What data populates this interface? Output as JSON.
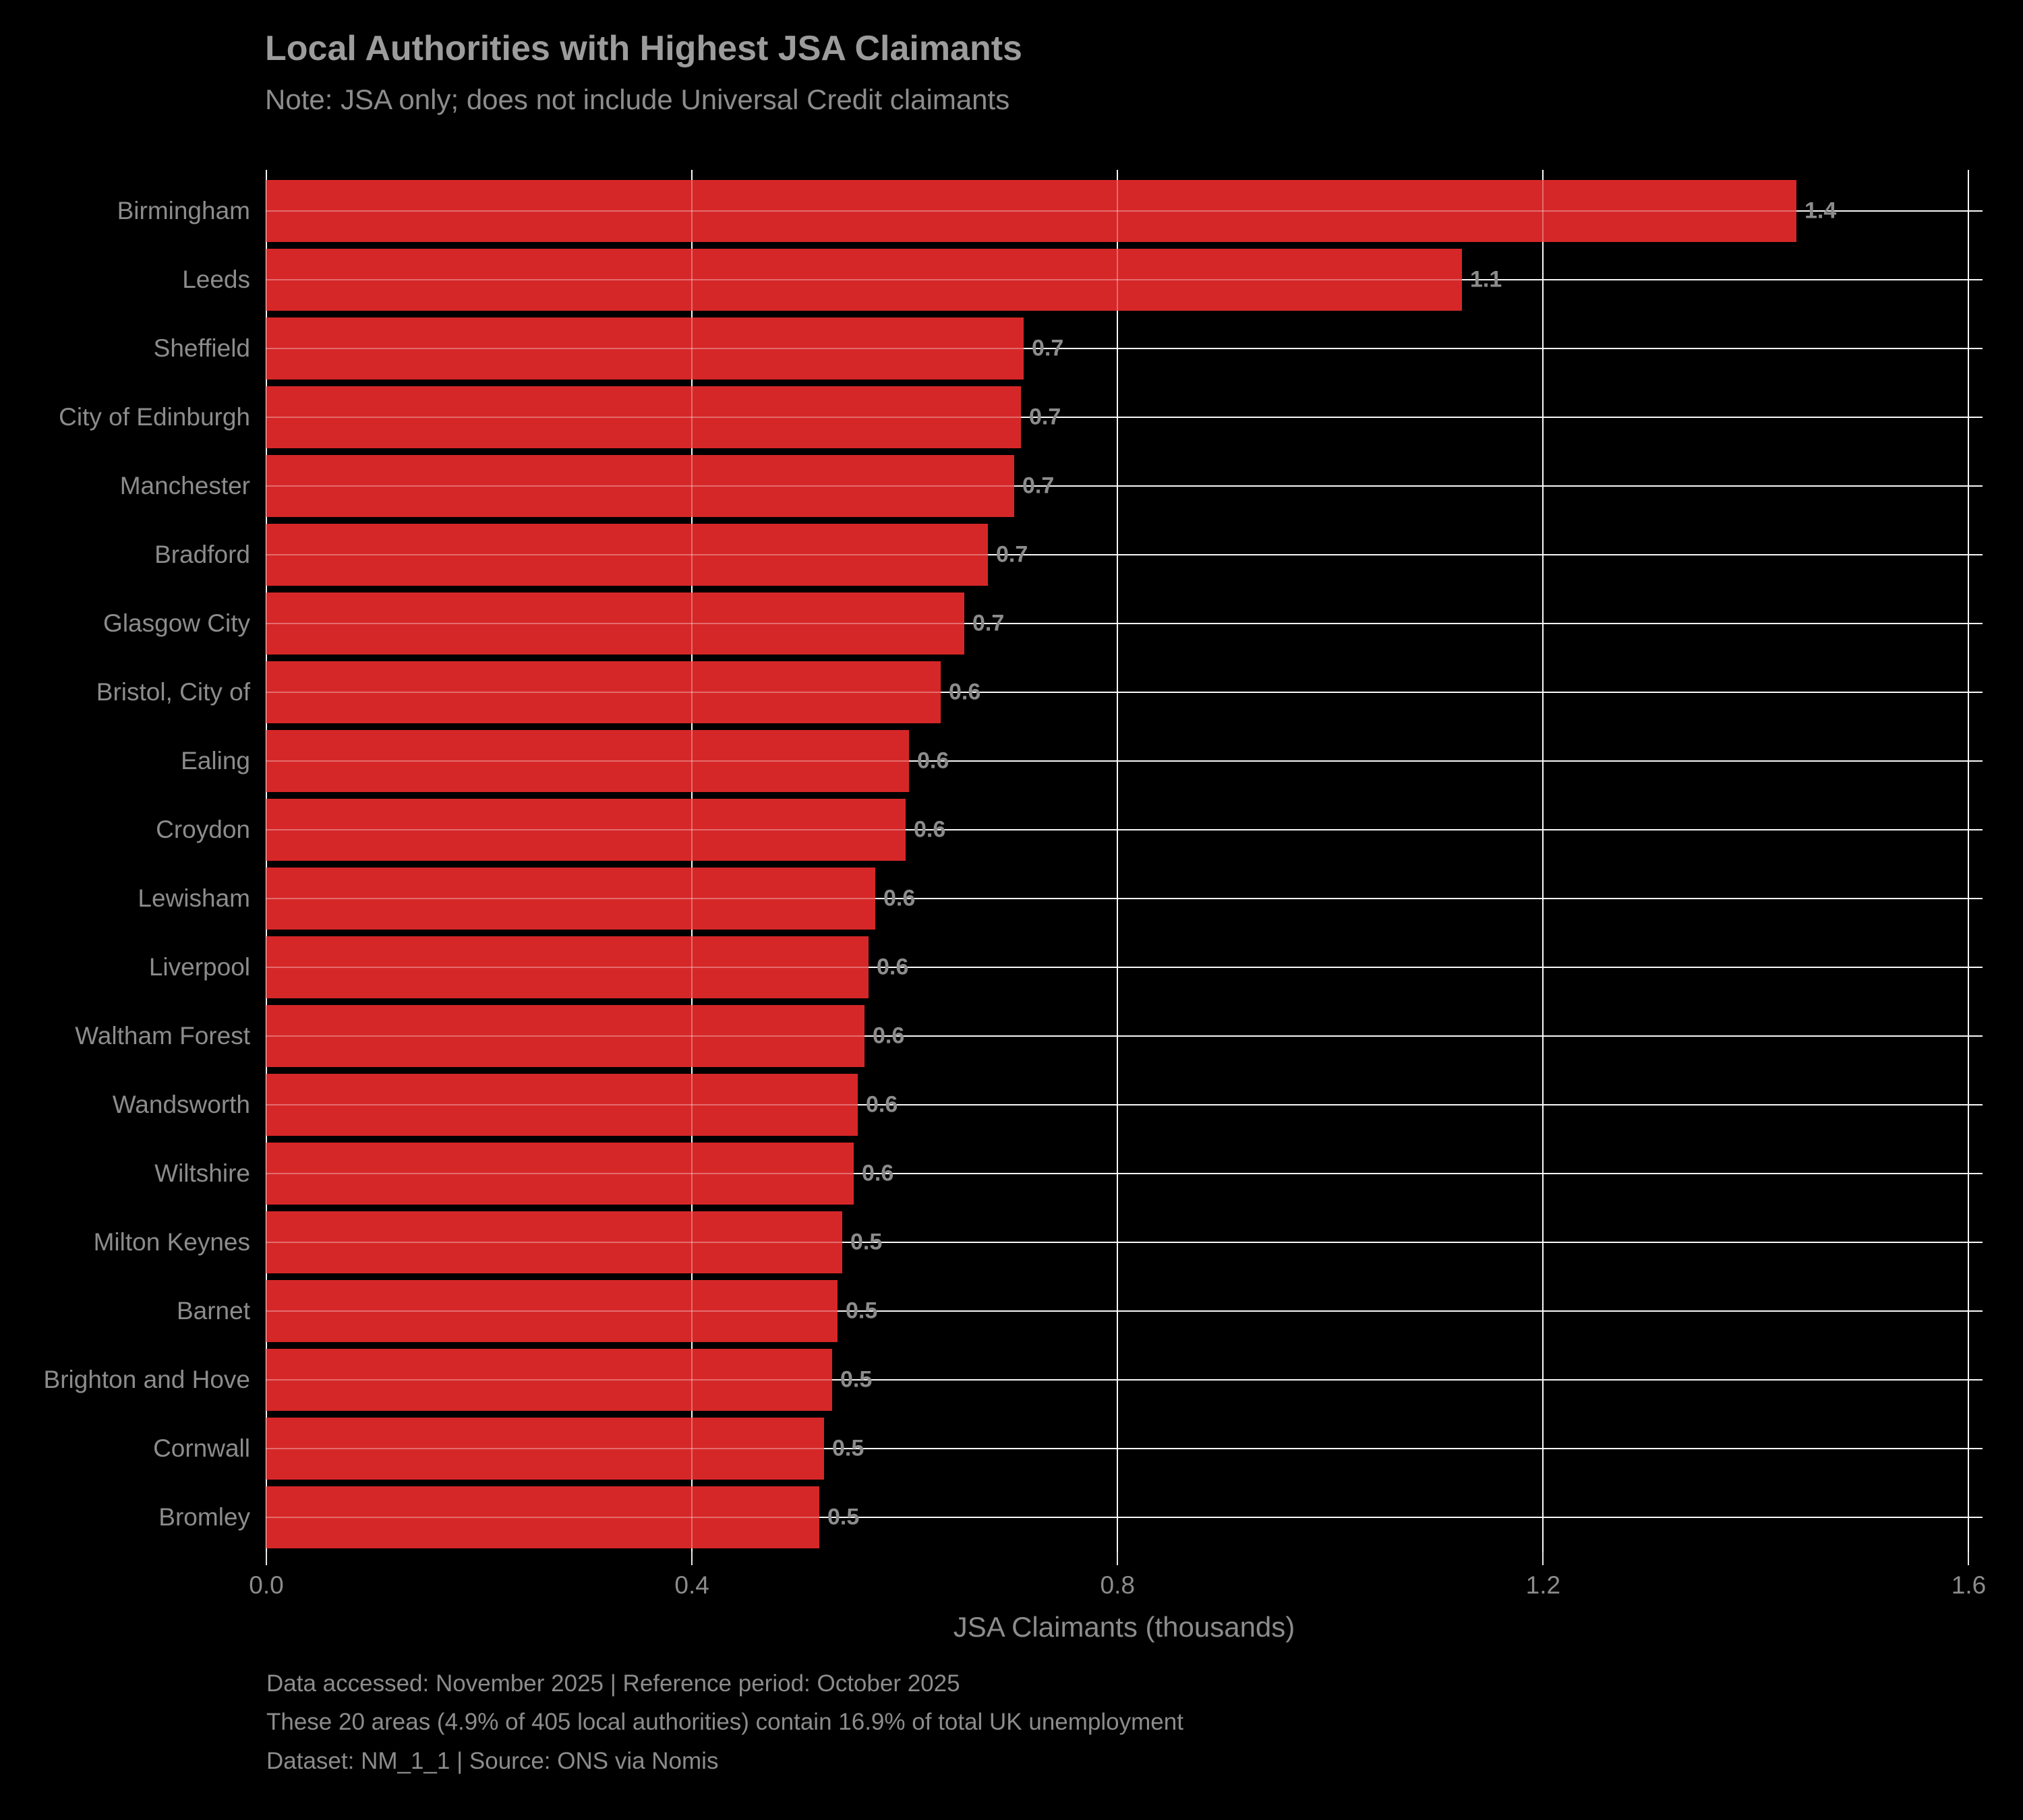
{
  "header": {
    "title": "Local Authorities with Highest JSA Claimants",
    "subtitle": "Note: JSA only; does not include Universal Credit claimants"
  },
  "chart_data": {
    "type": "bar",
    "orientation": "horizontal",
    "title": "Local Authorities with Highest JSA Claimants",
    "subtitle": "Note: JSA only; does not include Universal Credit claimants",
    "xlabel": "JSA Claimants (thousands)",
    "ylabel": "",
    "xlim": [
      0,
      1.613
    ],
    "grid": true,
    "legend": false,
    "categories": [
      "Birmingham",
      "Leeds",
      "Sheffield",
      "City of Edinburgh",
      "Manchester",
      "Bradford",
      "Glasgow City",
      "Bristol, City of",
      "Ealing",
      "Croydon",
      "Lewisham",
      "Liverpool",
      "Waltham Forest",
      "Wandsworth",
      "Wiltshire",
      "Milton Keynes",
      "Barnet",
      "Brighton and Hove",
      "Cornwall",
      "Bromley"
    ],
    "values": [
      1.438,
      1.124,
      0.712,
      0.709,
      0.703,
      0.678,
      0.656,
      0.634,
      0.604,
      0.601,
      0.572,
      0.566,
      0.562,
      0.556,
      0.552,
      0.541,
      0.537,
      0.532,
      0.524,
      0.52
    ],
    "bar_labels": [
      "1.4",
      "1.1",
      "0.7",
      "0.7",
      "0.7",
      "0.7",
      "0.7",
      "0.6",
      "0.6",
      "0.6",
      "0.6",
      "0.6",
      "0.6",
      "0.6",
      "0.6",
      "0.5",
      "0.5",
      "0.5",
      "0.5",
      "0.5"
    ],
    "xticks": [
      0.0,
      0.4,
      0.8,
      1.2,
      1.6
    ],
    "xtick_labels": [
      "0.0",
      "0.4",
      "0.8",
      "1.2",
      "1.6"
    ],
    "colors": {
      "bar": "#d62728",
      "background": "#000000",
      "grid": "#f5f5f5",
      "text": "#8c8c8c",
      "title": "#9c9c9c"
    }
  },
  "footer": {
    "line1": "Data accessed: November 2025 | Reference period: October 2025",
    "line2": "These 20 areas (4.9% of 405 local authorities) contain 16.9% of total UK unemployment",
    "line3": "Dataset: NM_1_1 | Source: ONS via Nomis"
  }
}
